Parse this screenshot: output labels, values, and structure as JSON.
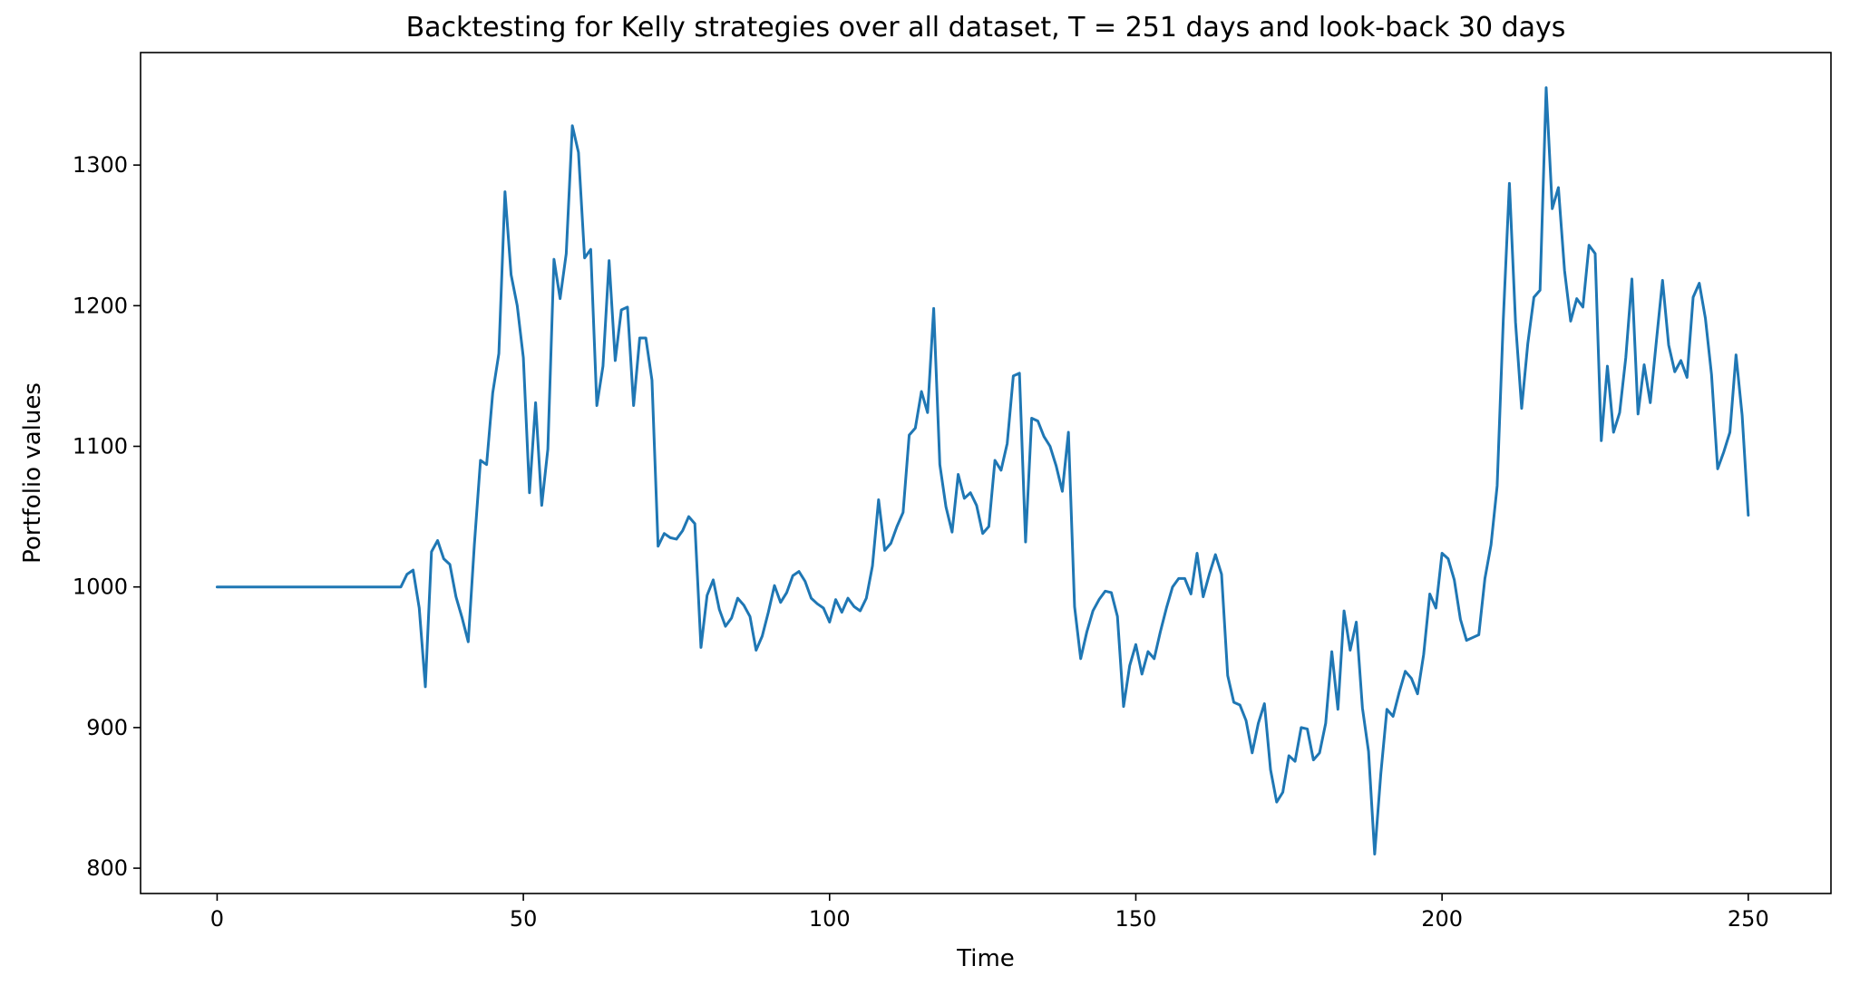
{
  "chart_data": {
    "type": "line",
    "title": "Backtesting for Kelly strategies over all dataset, T = 251 days and look-back 30 days",
    "xlabel": "Time",
    "ylabel": "Portfolio values",
    "xlim": [
      -12.5,
      263.5
    ],
    "ylim": [
      782,
      1380
    ],
    "xticks": [
      0,
      50,
      100,
      150,
      200,
      250
    ],
    "yticks": [
      800,
      900,
      1000,
      1100,
      1200,
      1300
    ],
    "grid": false,
    "line_color": "#1f77b4",
    "series": [
      {
        "values": [
          1000,
          1000,
          1000,
          1000,
          1000,
          1000,
          1000,
          1000,
          1000,
          1000,
          1000,
          1000,
          1000,
          1000,
          1000,
          1000,
          1000,
          1000,
          1000,
          1000,
          1000,
          1000,
          1000,
          1000,
          1000,
          1000,
          1000,
          1000,
          1000,
          1000,
          1000,
          1009,
          1012,
          985,
          929,
          1025,
          1033,
          1020,
          1016,
          993,
          978,
          961,
          1030,
          1090,
          1087,
          1138,
          1166,
          1281,
          1222,
          1200,
          1163,
          1067,
          1131,
          1058,
          1098,
          1233,
          1205,
          1237,
          1328,
          1309,
          1234,
          1240,
          1129,
          1157,
          1232,
          1161,
          1197,
          1199,
          1129,
          1177,
          1177,
          1147,
          1029,
          1038,
          1035,
          1034,
          1040,
          1050,
          1045,
          957,
          994,
          1005,
          984,
          972,
          978,
          992,
          987,
          979,
          955,
          965,
          982,
          1001,
          989,
          996,
          1008,
          1011,
          1004,
          992,
          988,
          985,
          975,
          991,
          982,
          992,
          986,
          983,
          992,
          1015,
          1062,
          1026,
          1031,
          1043,
          1053,
          1108,
          1113,
          1139,
          1124,
          1198,
          1087,
          1057,
          1039,
          1080,
          1063,
          1067,
          1058,
          1038,
          1043,
          1090,
          1083,
          1102,
          1150,
          1152,
          1032,
          1120,
          1118,
          1107,
          1100,
          1086,
          1068,
          1110,
          986,
          949,
          968,
          983,
          991,
          997,
          996,
          979,
          915,
          944,
          959,
          938,
          954,
          949,
          968,
          985,
          1000,
          1006,
          1006,
          995,
          1024,
          993,
          1009,
          1023,
          1009,
          937,
          918,
          916,
          905,
          882,
          903,
          917,
          870,
          847,
          854,
          880,
          876,
          900,
          899,
          877,
          882,
          903,
          954,
          913,
          983,
          955,
          975,
          914,
          883,
          810,
          867,
          913,
          908,
          925,
          940,
          935,
          924,
          952,
          995,
          985,
          1024,
          1020,
          1005,
          977,
          962,
          964,
          966,
          1006,
          1030,
          1072,
          1190,
          1287,
          1188,
          1127,
          1173,
          1206,
          1211,
          1355,
          1269,
          1284,
          1225,
          1189,
          1205,
          1199,
          1243,
          1237,
          1104,
          1157,
          1110,
          1124,
          1163,
          1219,
          1123,
          1158,
          1131,
          1175,
          1218,
          1172,
          1153,
          1161,
          1149,
          1206,
          1216,
          1191,
          1151,
          1084,
          1096,
          1110,
          1165,
          1122,
          1051
        ]
      }
    ]
  }
}
